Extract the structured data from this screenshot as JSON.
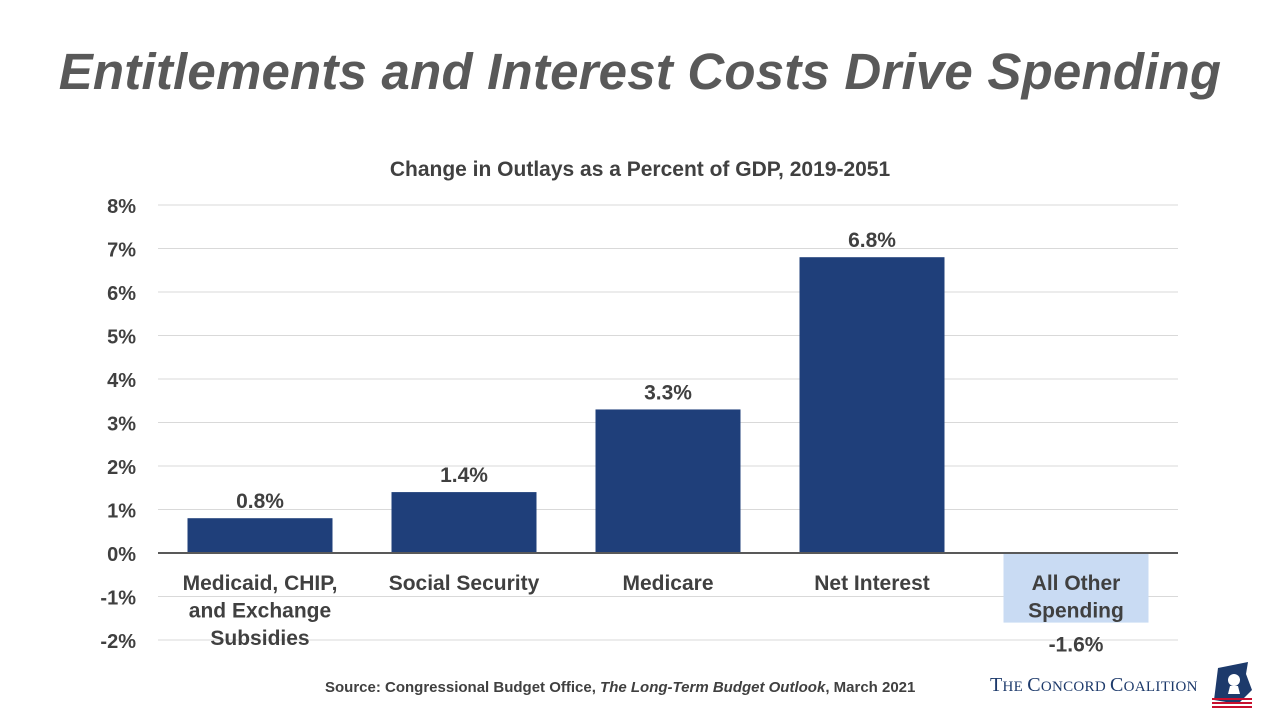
{
  "slide": {
    "title": "Entitlements and Interest Costs Drive Spending"
  },
  "chart_data": {
    "type": "bar",
    "title": "Change in Outlays as a Percent of GDP, 2019-2051",
    "categories": [
      "Medicaid, CHIP, and Exchange Subsidies",
      "Social Security",
      "Medicare",
      "Net Interest",
      "All Other Spending"
    ],
    "category_lines": [
      [
        "Medicaid, CHIP,",
        "and Exchange",
        "Subsidies"
      ],
      [
        "Social Security"
      ],
      [
        "Medicare"
      ],
      [
        "Net Interest"
      ],
      [
        "All Other",
        "Spending"
      ]
    ],
    "values": [
      0.8,
      1.4,
      3.3,
      6.8,
      -1.6
    ],
    "value_labels": [
      "0.8%",
      "1.4%",
      "3.3%",
      "6.8%",
      "-1.6%"
    ],
    "ylim": [
      -2,
      8
    ],
    "yticks": [
      8,
      7,
      6,
      5,
      4,
      3,
      2,
      1,
      0,
      -1,
      -2
    ],
    "ytick_labels": [
      "8%",
      "7%",
      "6%",
      "5%",
      "4%",
      "3%",
      "2%",
      "1%",
      "0%",
      "-1%",
      "-2%"
    ],
    "grid": true,
    "colors": {
      "positive": "#1f3f7a",
      "negative": "#c9dbf3",
      "grid": "#d9d9d9",
      "axis": "#595959",
      "text": "#404040"
    }
  },
  "source": {
    "prefix": "Source: Congressional Budget Office, ",
    "publication": "The Long-Term Budget Outlook",
    "suffix": ", March 2021"
  },
  "logo": {
    "text_the": "T",
    "text_he": "HE ",
    "text_c1": "C",
    "text_oncord": "ONCORD ",
    "text_c2": "C",
    "text_oalition": "OALITION",
    "icon": "eagle-flag-icon"
  }
}
